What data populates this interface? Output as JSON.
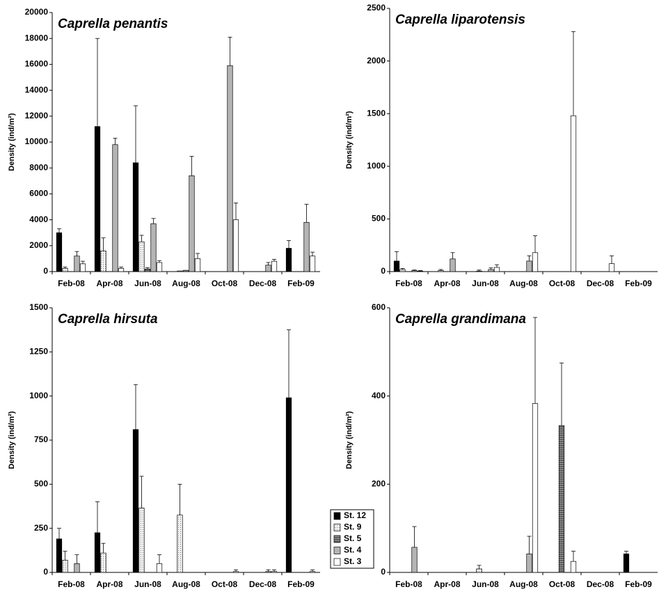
{
  "chart_data": [
    {
      "type": "bar",
      "title": "Caprella penantis",
      "y_label": "Density (ind/m²)",
      "categories": [
        "Feb-08",
        "Apr-08",
        "Jun-08",
        "Aug-08",
        "Oct-08",
        "Dec-08",
        "Feb-09"
      ],
      "ylim": [
        0,
        20000
      ],
      "yticks": [
        0,
        2000,
        4000,
        6000,
        8000,
        10000,
        12000,
        14000,
        16000,
        18000,
        20000
      ],
      "series": [
        {
          "color": "#000000",
          "values": [
            3000,
            11200,
            8400,
            0,
            0,
            0,
            1800
          ],
          "errors": [
            300,
            6800,
            4400,
            0,
            0,
            0,
            600
          ]
        },
        {
          "color": "#f2f2f2",
          "pattern": "dots",
          "values": [
            250,
            1600,
            2300,
            50,
            0,
            0,
            0
          ],
          "errors": [
            100,
            1000,
            500,
            0,
            0,
            0,
            0
          ]
        },
        {
          "color": "#606060",
          "pattern": "stripes",
          "values": [
            0,
            0,
            200,
            100,
            0,
            0,
            0
          ],
          "errors": [
            0,
            0,
            100,
            0,
            0,
            0,
            0
          ]
        },
        {
          "color": "#b4b4b4",
          "values": [
            1200,
            9800,
            3700,
            7400,
            15900,
            500,
            3800
          ],
          "errors": [
            350,
            500,
            400,
            1500,
            2200,
            200,
            1400
          ]
        },
        {
          "color": "#ffffff",
          "values": [
            600,
            250,
            700,
            1000,
            4000,
            800,
            1200
          ],
          "errors": [
            200,
            100,
            150,
            400,
            1300,
            150,
            300
          ]
        }
      ]
    },
    {
      "type": "bar",
      "title": "Caprella liparotensis",
      "y_label": "Density (ind/m²)",
      "categories": [
        "Feb-08",
        "Apr-08",
        "Jun-08",
        "Aug-08",
        "Oct-08",
        "Dec-08",
        "Feb-09"
      ],
      "ylim": [
        0,
        2500
      ],
      "yticks": [
        0,
        500,
        1000,
        1500,
        2000,
        2500
      ],
      "series": [
        {
          "color": "#000000",
          "values": [
            100,
            0,
            0,
            0,
            0,
            0,
            0
          ],
          "errors": [
            90,
            0,
            0,
            0,
            0,
            0,
            0
          ]
        },
        {
          "color": "#f2f2f2",
          "pattern": "dots",
          "values": [
            20,
            10,
            5,
            0,
            0,
            0,
            0
          ],
          "errors": [
            10,
            10,
            10,
            0,
            0,
            0,
            0
          ]
        },
        {
          "color": "#606060",
          "pattern": "stripes",
          "values": [
            0,
            0,
            0,
            0,
            0,
            0,
            0
          ],
          "errors": [
            0,
            0,
            0,
            0,
            0,
            0,
            0
          ]
        },
        {
          "color": "#b4b4b4",
          "values": [
            10,
            120,
            20,
            100,
            0,
            0,
            0
          ],
          "errors": [
            5,
            60,
            15,
            50,
            0,
            0,
            0
          ]
        },
        {
          "color": "#ffffff",
          "values": [
            5,
            0,
            40,
            180,
            1480,
            75,
            0
          ],
          "errors": [
            5,
            0,
            25,
            160,
            800,
            75,
            0
          ]
        }
      ]
    },
    {
      "type": "bar",
      "title": "Caprella hirsuta",
      "y_label": "Density (ind/m²)",
      "legend": "lower right",
      "categories": [
        "Feb-08",
        "Apr-08",
        "Jun-08",
        "Aug-08",
        "Oct-08",
        "Dec-08",
        "Feb-09"
      ],
      "ylim": [
        0,
        1500
      ],
      "yticks": [
        0,
        250,
        500,
        750,
        1000,
        1250,
        1500
      ],
      "series": [
        {
          "name": "St. 12",
          "color": "#000000",
          "values": [
            190,
            225,
            810,
            0,
            0,
            0,
            990
          ],
          "errors": [
            60,
            175,
            255,
            0,
            0,
            0,
            385
          ]
        },
        {
          "name": "St. 9",
          "color": "#f2f2f2",
          "pattern": "dots",
          "values": [
            70,
            110,
            365,
            325,
            0,
            0,
            0
          ],
          "errors": [
            50,
            55,
            180,
            175,
            0,
            0,
            0
          ]
        },
        {
          "name": "St. 5",
          "color": "#606060",
          "pattern": "stripes",
          "values": [
            0,
            0,
            0,
            0,
            0,
            0,
            0
          ],
          "errors": [
            0,
            0,
            0,
            0,
            0,
            0,
            0
          ]
        },
        {
          "name": "St. 4",
          "color": "#b4b4b4",
          "values": [
            50,
            0,
            0,
            0,
            0,
            5,
            0
          ],
          "errors": [
            50,
            0,
            0,
            0,
            0,
            10,
            0
          ]
        },
        {
          "name": "St. 3",
          "color": "#ffffff",
          "values": [
            0,
            0,
            50,
            0,
            5,
            5,
            5
          ],
          "errors": [
            0,
            0,
            50,
            0,
            10,
            10,
            10
          ]
        }
      ]
    },
    {
      "type": "bar",
      "title": "Caprella grandimana",
      "y_label": "Density (ind/m²)",
      "categories": [
        "Feb-08",
        "Apr-08",
        "Jun-08",
        "Aug-08",
        "Oct-08",
        "Dec-08",
        "Feb-09"
      ],
      "ylim": [
        0,
        600
      ],
      "yticks": [
        0,
        200,
        400,
        600
      ],
      "series": [
        {
          "color": "#000000",
          "values": [
            0,
            0,
            0,
            0,
            0,
            0,
            42
          ],
          "errors": [
            0,
            0,
            0,
            0,
            0,
            0,
            6
          ]
        },
        {
          "color": "#f2f2f2",
          "pattern": "dots",
          "values": [
            0,
            0,
            8,
            0,
            0,
            0,
            0
          ],
          "errors": [
            0,
            0,
            8,
            0,
            0,
            0,
            0
          ]
        },
        {
          "color": "#606060",
          "pattern": "stripes",
          "values": [
            0,
            0,
            0,
            0,
            333,
            0,
            0
          ],
          "errors": [
            0,
            0,
            0,
            0,
            142,
            0,
            0
          ]
        },
        {
          "color": "#b4b4b4",
          "values": [
            57,
            0,
            0,
            42,
            0,
            0,
            0
          ],
          "errors": [
            47,
            0,
            0,
            40,
            0,
            0,
            0
          ]
        },
        {
          "color": "#ffffff",
          "values": [
            0,
            0,
            0,
            383,
            25,
            0,
            0
          ],
          "errors": [
            0,
            0,
            0,
            195,
            23,
            0,
            0
          ]
        }
      ]
    }
  ]
}
